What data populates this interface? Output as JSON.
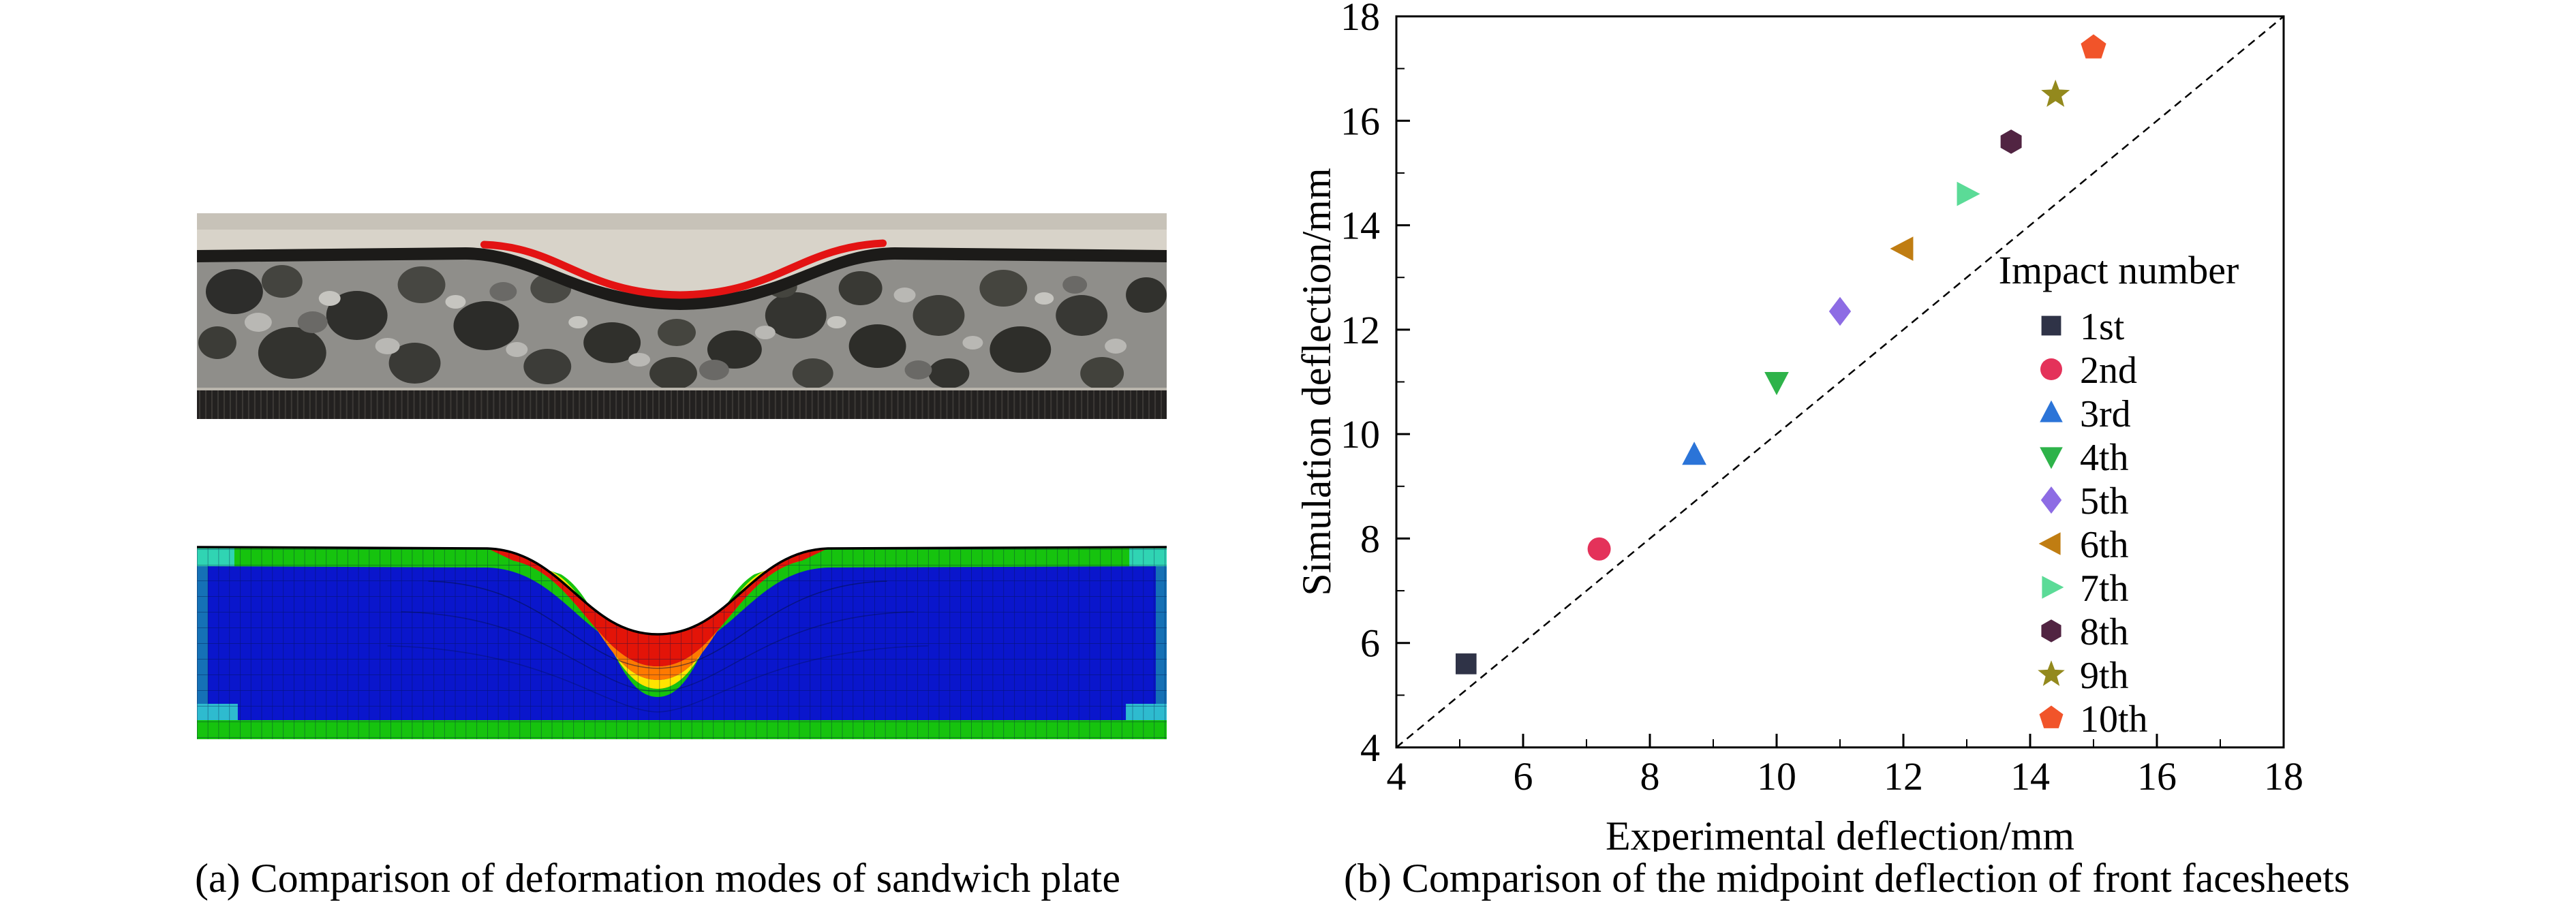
{
  "panel_a": {
    "caption": "(a) Comparison of deformation modes of sandwich plate",
    "images": {
      "experiment_photo": "deformed-aluminum-foam-sandwich-plate-cross-section",
      "experiment_overlay": "red-deflection-profile-curve",
      "simulation_image": "finite-element-deformation-contour",
      "overlay_color": "#e31313",
      "sim_body_color": "#0a16cc",
      "sim_edge_color": "#16c30e",
      "sim_peak_stress_color": "#e31408"
    }
  },
  "panel_b": {
    "caption": "(b) Comparison of the midpoint deflection of front facesheets"
  },
  "chart_data": {
    "type": "scatter",
    "title": "",
    "xlabel": "Experimental deflection/mm",
    "ylabel": "Simulation deflection/mm",
    "xlim": [
      4,
      18
    ],
    "ylim": [
      4,
      18
    ],
    "xticks": [
      4,
      6,
      8,
      10,
      12,
      14,
      16,
      18
    ],
    "yticks": [
      4,
      6,
      8,
      10,
      12,
      14,
      16,
      18
    ],
    "minor_tick_step": 1,
    "grid": false,
    "frame": "full-box",
    "reference_line": {
      "type": "y=x",
      "style": "dashed",
      "color": "#000000",
      "from": [
        4,
        4
      ],
      "to": [
        18,
        18
      ]
    },
    "legend": {
      "title": "Impact number",
      "position": "inside-right"
    },
    "series": [
      {
        "name": "1st",
        "marker": "square",
        "color": "#2f3347",
        "x": 5.1,
        "y": 5.6
      },
      {
        "name": "2nd",
        "marker": "circle",
        "color": "#e4325a",
        "x": 7.2,
        "y": 7.8
      },
      {
        "name": "3rd",
        "marker": "triangle-up",
        "color": "#2b74d8",
        "x": 8.7,
        "y": 9.6
      },
      {
        "name": "4th",
        "marker": "triangle-down",
        "color": "#2eb34a",
        "x": 10.0,
        "y": 11.0
      },
      {
        "name": "5th",
        "marker": "diamond",
        "color": "#8d6ce4",
        "x": 11.0,
        "y": 12.35
      },
      {
        "name": "6th",
        "marker": "triangle-left",
        "color": "#c07d12",
        "x": 12.0,
        "y": 13.55
      },
      {
        "name": "7th",
        "marker": "triangle-right",
        "color": "#5bdb97",
        "x": 13.0,
        "y": 14.6
      },
      {
        "name": "8th",
        "marker": "hexagon",
        "color": "#512442",
        "x": 13.7,
        "y": 15.6
      },
      {
        "name": "9th",
        "marker": "star",
        "color": "#93891d",
        "x": 14.4,
        "y": 16.5
      },
      {
        "name": "10th",
        "marker": "pentagon",
        "color": "#f1542a",
        "x": 15.0,
        "y": 17.4
      }
    ]
  }
}
